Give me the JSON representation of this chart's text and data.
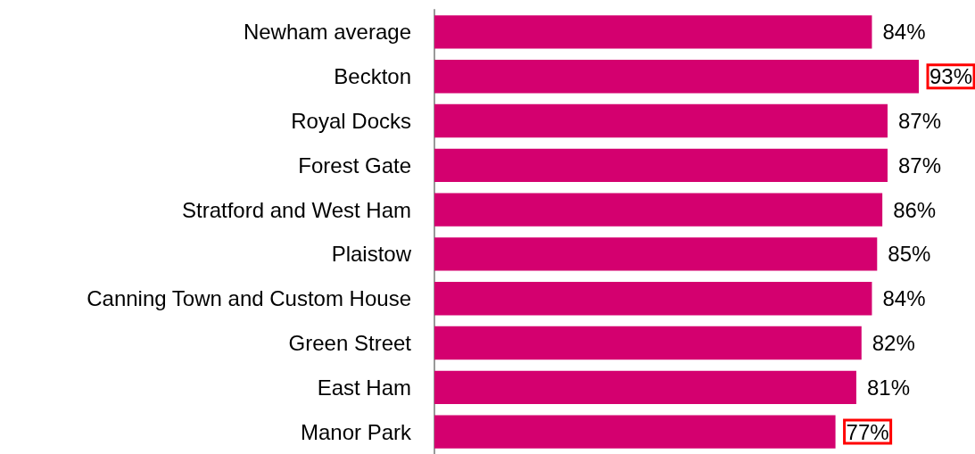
{
  "chart_data": {
    "type": "bar",
    "orientation": "horizontal",
    "categories": [
      "Newham average",
      "Beckton",
      "Royal Docks",
      "Forest Gate",
      "Stratford and West Ham",
      "Plaistow",
      "Canning Town and Custom House",
      "Green Street",
      "East Ham",
      "Manor Park"
    ],
    "values": [
      84,
      93,
      87,
      87,
      86,
      85,
      84,
      82,
      81,
      77
    ],
    "value_labels": [
      "84%",
      "93%",
      "87%",
      "87%",
      "86%",
      "85%",
      "84%",
      "82%",
      "81%",
      "77%"
    ],
    "color": "#d4006f"
  }
}
